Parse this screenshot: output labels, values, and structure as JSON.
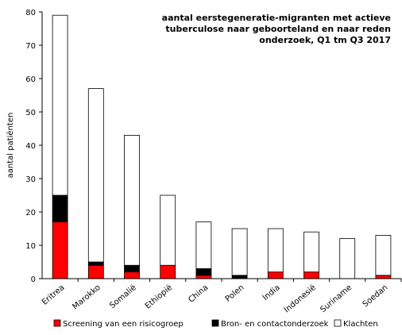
{
  "chart_data": {
    "type": "bar",
    "stacked": true,
    "title_lines": [
      "aantal eerstegeneratie-migranten met actieve",
      "tuberculose naar geboorteland en naar reden",
      "onderzoek, Q1 tm Q3 2017"
    ],
    "ylabel": "aantal patiënten",
    "xlabel": "",
    "ylim": [
      0,
      80
    ],
    "yticks": [
      0,
      10,
      20,
      30,
      40,
      50,
      60,
      70,
      80
    ],
    "grid": false,
    "legend_position": "bottom",
    "categories": [
      "Eritrea",
      "Marokko",
      "Somalië",
      "Ethiopië",
      "China",
      "Polen",
      "India",
      "Indonesië",
      "Suriname",
      "Soedan"
    ],
    "series": [
      {
        "name": "Screening van een risicogroep",
        "color": "#ff0000",
        "values": [
          17,
          4,
          2,
          4,
          1,
          0,
          2,
          2,
          0,
          1
        ]
      },
      {
        "name": "Bron- en contactonderzoek",
        "color": "#000000",
        "values": [
          8,
          1,
          2,
          0,
          2,
          1,
          0,
          0,
          0,
          0
        ]
      },
      {
        "name": "Klachten",
        "color": "#ffffff",
        "values": [
          54,
          52,
          39,
          21,
          14,
          14,
          13,
          12,
          12,
          12
        ]
      }
    ]
  }
}
